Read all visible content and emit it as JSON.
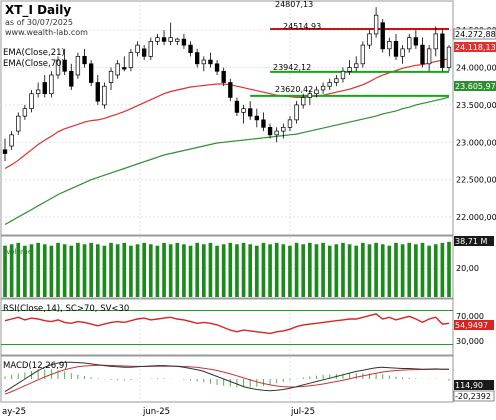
{
  "header": {
    "symbol_title": "XT_I Daily",
    "as_of": "as of 30/07/2025",
    "website": "www.wealth-lab.com"
  },
  "legend": {
    "ema21": "EMA(Close,21)",
    "ema70": "EMA(Close,70)",
    "rsi": "RSI(Close,14), SC>70, SV<30",
    "macd": "MACD(12,26,9)"
  },
  "price_axis": {
    "ticks": [
      "24.500,00",
      "24.000,00",
      "23.500,00",
      "23.000,00",
      "22.500,00",
      "22.000,00"
    ],
    "labels": {
      "last_close": "24.272,88",
      "ema21_value": "24.118,131",
      "ema70_value": "23.605,97"
    }
  },
  "annotations": {
    "peak": "24807,13",
    "resistance": "24514,93",
    "support_upper": "23942,12",
    "support_lower": "23620,42"
  },
  "colors": {
    "ema21": "#e03030",
    "ema70": "#2f8f2f",
    "resistance_line": "#cc1111",
    "support_line": "#11aa11",
    "volume": "#1a8a1a",
    "rsi_line": "#dd2222",
    "macd_line": "#333333",
    "signal_line": "#cc3333",
    "histogram": "#4caf50"
  },
  "volume_axis": {
    "ticks": [
      "20,00"
    ],
    "last_value": "38,71 M"
  },
  "rsi_axis": {
    "ticks": [
      "70,000",
      "30,000"
    ],
    "last_value": "54,9497"
  },
  "macd_axis": {
    "last_macd": "114,90",
    "last_hist": "-20,2392"
  },
  "x_axis": {
    "labels": [
      "ay-25",
      "jun-25",
      "jul-25"
    ]
  },
  "chart_data": [
    {
      "type": "candlestick",
      "title": "XT_I Daily",
      "ylim": [
        21800,
        24850
      ],
      "bars": [
        {
          "o": 22900,
          "h": 23050,
          "l": 22750,
          "c": 22850
        },
        {
          "o": 22950,
          "h": 23150,
          "l": 22900,
          "c": 23100
        },
        {
          "o": 23150,
          "h": 23400,
          "l": 23100,
          "c": 23350
        },
        {
          "o": 23350,
          "h": 23500,
          "l": 23300,
          "c": 23450
        },
        {
          "o": 23450,
          "h": 23700,
          "l": 23400,
          "c": 23650
        },
        {
          "o": 23650,
          "h": 23800,
          "l": 23600,
          "c": 23700
        },
        {
          "o": 23800,
          "h": 23900,
          "l": 23600,
          "c": 23650
        },
        {
          "o": 23650,
          "h": 23950,
          "l": 23600,
          "c": 23900
        },
        {
          "o": 23900,
          "h": 24150,
          "l": 23850,
          "c": 24100
        },
        {
          "o": 24100,
          "h": 24250,
          "l": 23900,
          "c": 23950
        },
        {
          "o": 23950,
          "h": 24050,
          "l": 23700,
          "c": 23750
        },
        {
          "o": 23900,
          "h": 24200,
          "l": 23850,
          "c": 24150
        },
        {
          "o": 24150,
          "h": 24250,
          "l": 24000,
          "c": 24050
        },
        {
          "o": 24050,
          "h": 24100,
          "l": 23750,
          "c": 23800
        },
        {
          "o": 23800,
          "h": 23900,
          "l": 23500,
          "c": 23550
        },
        {
          "o": 23500,
          "h": 23800,
          "l": 23450,
          "c": 23750
        },
        {
          "o": 23800,
          "h": 24000,
          "l": 23700,
          "c": 23950
        },
        {
          "o": 23900,
          "h": 24100,
          "l": 23850,
          "c": 24050
        },
        {
          "o": 24000,
          "h": 24150,
          "l": 23950,
          "c": 23980
        },
        {
          "o": 24000,
          "h": 24250,
          "l": 23950,
          "c": 24200
        },
        {
          "o": 24200,
          "h": 24350,
          "l": 24150,
          "c": 24300
        },
        {
          "o": 24250,
          "h": 24300,
          "l": 24100,
          "c": 24150
        },
        {
          "o": 24150,
          "h": 24400,
          "l": 24100,
          "c": 24350
        },
        {
          "o": 24350,
          "h": 24450,
          "l": 24300,
          "c": 24400
        },
        {
          "o": 24400,
          "h": 24500,
          "l": 24300,
          "c": 24350
        },
        {
          "o": 24350,
          "h": 24600,
          "l": 24300,
          "c": 24400
        },
        {
          "o": 24350,
          "h": 24400,
          "l": 24300,
          "c": 24380
        },
        {
          "o": 24380,
          "h": 24450,
          "l": 24250,
          "c": 24300
        },
        {
          "o": 24300,
          "h": 24350,
          "l": 24150,
          "c": 24200
        },
        {
          "o": 24200,
          "h": 24250,
          "l": 24000,
          "c": 24050
        },
        {
          "o": 24050,
          "h": 24150,
          "l": 23950,
          "c": 24100
        },
        {
          "o": 24100,
          "h": 24200,
          "l": 24000,
          "c": 24050
        },
        {
          "o": 24050,
          "h": 24100,
          "l": 23900,
          "c": 23950
        },
        {
          "o": 23950,
          "h": 24000,
          "l": 23750,
          "c": 23800
        },
        {
          "o": 23800,
          "h": 23850,
          "l": 23550,
          "c": 23600
        },
        {
          "o": 23550,
          "h": 23600,
          "l": 23350,
          "c": 23400
        },
        {
          "o": 23400,
          "h": 23500,
          "l": 23250,
          "c": 23450
        },
        {
          "o": 23450,
          "h": 23550,
          "l": 23300,
          "c": 23350
        },
        {
          "o": 23350,
          "h": 23450,
          "l": 23200,
          "c": 23300
        },
        {
          "o": 23300,
          "h": 23400,
          "l": 23150,
          "c": 23200
        },
        {
          "o": 23200,
          "h": 23250,
          "l": 23050,
          "c": 23100
        },
        {
          "o": 23100,
          "h": 23200,
          "l": 23000,
          "c": 23150
        },
        {
          "o": 23150,
          "h": 23250,
          "l": 23050,
          "c": 23200
        },
        {
          "o": 23200,
          "h": 23350,
          "l": 23150,
          "c": 23300
        },
        {
          "o": 23300,
          "h": 23550,
          "l": 23250,
          "c": 23500
        },
        {
          "o": 23500,
          "h": 23650,
          "l": 23450,
          "c": 23600
        },
        {
          "o": 23600,
          "h": 23700,
          "l": 23500,
          "c": 23650
        },
        {
          "o": 23650,
          "h": 23750,
          "l": 23600,
          "c": 23700
        },
        {
          "o": 23700,
          "h": 23800,
          "l": 23650,
          "c": 23750
        },
        {
          "o": 23750,
          "h": 23850,
          "l": 23700,
          "c": 23800
        },
        {
          "o": 23800,
          "h": 23900,
          "l": 23750,
          "c": 23850
        },
        {
          "o": 23850,
          "h": 24000,
          "l": 23800,
          "c": 23950
        },
        {
          "o": 23950,
          "h": 24100,
          "l": 23900,
          "c": 24000
        },
        {
          "o": 24000,
          "h": 24150,
          "l": 23950,
          "c": 24050
        },
        {
          "o": 24050,
          "h": 24350,
          "l": 24000,
          "c": 24300
        },
        {
          "o": 24300,
          "h": 24500,
          "l": 24250,
          "c": 24450
        },
        {
          "o": 24450,
          "h": 24807,
          "l": 24400,
          "c": 24700
        },
        {
          "o": 24600,
          "h": 24650,
          "l": 24200,
          "c": 24250
        },
        {
          "o": 24250,
          "h": 24400,
          "l": 24150,
          "c": 24350
        },
        {
          "o": 24350,
          "h": 24450,
          "l": 24100,
          "c": 24150
        },
        {
          "o": 24150,
          "h": 24300,
          "l": 24050,
          "c": 24250
        },
        {
          "o": 24250,
          "h": 24450,
          "l": 24200,
          "c": 24400
        },
        {
          "o": 24400,
          "h": 24500,
          "l": 24250,
          "c": 24300
        },
        {
          "o": 24300,
          "h": 24400,
          "l": 24000,
          "c": 24050
        },
        {
          "o": 24050,
          "h": 24300,
          "l": 23950,
          "c": 24250
        },
        {
          "o": 24250,
          "h": 24550,
          "l": 24150,
          "c": 24450
        },
        {
          "o": 24450,
          "h": 24520,
          "l": 23950,
          "c": 24000
        },
        {
          "o": 24000,
          "h": 24300,
          "l": 23950,
          "c": 24273
        }
      ],
      "ema21": [
        22650,
        22700,
        22760,
        22830,
        22900,
        22970,
        23030,
        23080,
        23140,
        23180,
        23210,
        23240,
        23270,
        23290,
        23300,
        23320,
        23350,
        23380,
        23410,
        23450,
        23490,
        23530,
        23570,
        23610,
        23650,
        23680,
        23700,
        23720,
        23740,
        23750,
        23760,
        23770,
        23780,
        23780,
        23770,
        23750,
        23730,
        23710,
        23690,
        23670,
        23650,
        23630,
        23620,
        23610,
        23600,
        23600,
        23610,
        23620,
        23630,
        23650,
        23670,
        23690,
        23710,
        23740,
        23770,
        23810,
        23860,
        23900,
        23930,
        23960,
        23990,
        24010,
        24030,
        24040,
        24060,
        24080,
        24100,
        24118
      ],
      "ema70": [
        21900,
        21950,
        22000,
        22050,
        22100,
        22150,
        22200,
        22250,
        22300,
        22340,
        22380,
        22420,
        22460,
        22500,
        22530,
        22560,
        22590,
        22620,
        22650,
        22680,
        22710,
        22740,
        22770,
        22800,
        22830,
        22850,
        22870,
        22890,
        22910,
        22930,
        22950,
        22970,
        22990,
        23000,
        23010,
        23020,
        23030,
        23040,
        23050,
        23060,
        23070,
        23080,
        23090,
        23100,
        23110,
        23130,
        23150,
        23170,
        23190,
        23210,
        23230,
        23250,
        23270,
        23290,
        23310,
        23330,
        23350,
        23380,
        23400,
        23420,
        23450,
        23470,
        23500,
        23520,
        23540,
        23560,
        23580,
        23606
      ],
      "resistance": 24514.93,
      "support_upper": 23942.12,
      "support_lower": 23620.42,
      "peak": 24807.13
    },
    {
      "type": "bar",
      "title": "Volume",
      "values": [
        36,
        37,
        38,
        36,
        37,
        38,
        37,
        36,
        38,
        37,
        36,
        38,
        37,
        38,
        37,
        36,
        38,
        37,
        38,
        36,
        37,
        38,
        37,
        36,
        38,
        37,
        38,
        37,
        36,
        38,
        37,
        38,
        36,
        37,
        38,
        37,
        38,
        37,
        36,
        38,
        37,
        38,
        37,
        36,
        38,
        37,
        38,
        37,
        38,
        36,
        37,
        38,
        37,
        36,
        38,
        37,
        38,
        37,
        36,
        38,
        37,
        38,
        37,
        38,
        36,
        37,
        38,
        38.71
      ],
      "ylim": [
        0,
        40
      ]
    },
    {
      "type": "line",
      "title": "RSI(Close,14), SC>70, SV<30",
      "values": [
        58,
        60,
        62,
        59,
        61,
        60,
        58,
        57,
        59,
        56,
        55,
        57,
        56,
        54,
        52,
        54,
        56,
        57,
        56,
        58,
        60,
        61,
        59,
        60,
        61,
        62,
        60,
        59,
        57,
        55,
        56,
        55,
        53,
        50,
        47,
        45,
        47,
        46,
        45,
        44,
        43,
        45,
        46,
        48,
        51,
        53,
        54,
        55,
        56,
        57,
        58,
        59,
        60,
        60,
        62,
        64,
        66,
        60,
        62,
        59,
        61,
        63,
        60,
        56,
        60,
        62,
        54,
        54.95
      ],
      "ylim": [
        20,
        80
      ],
      "levels": [
        70,
        30
      ]
    },
    {
      "type": "line",
      "title": "MACD(12,26,9)",
      "macd": [
        -150,
        -100,
        -50,
        0,
        50,
        100,
        140,
        170,
        190,
        200,
        200,
        195,
        190,
        180,
        170,
        160,
        150,
        145,
        140,
        140,
        145,
        150,
        155,
        160,
        160,
        155,
        150,
        140,
        125,
        110,
        90,
        60,
        30,
        0,
        -30,
        -60,
        -90,
        -110,
        -125,
        -135,
        -140,
        -135,
        -125,
        -110,
        -90,
        -70,
        -50,
        -30,
        -10,
        10,
        30,
        50,
        70,
        90,
        105,
        120,
        135,
        140,
        135,
        130,
        125,
        125,
        120,
        115,
        118,
        120,
        117,
        114.9
      ],
      "signal": [
        -180,
        -150,
        -115,
        -80,
        -45,
        -10,
        25,
        55,
        85,
        110,
        130,
        145,
        155,
        160,
        163,
        163,
        161,
        158,
        155,
        152,
        150,
        149,
        150,
        151,
        152,
        152,
        151,
        149,
        144,
        138,
        129,
        116,
        101,
        82,
        61,
        38,
        13,
        -11,
        -33,
        -53,
        -70,
        -83,
        -91,
        -95,
        -94,
        -89,
        -81,
        -71,
        -59,
        -45,
        -30,
        -14,
        3,
        20,
        37,
        53,
        69,
        83,
        94,
        101,
        106,
        110,
        112,
        113,
        114,
        116,
        116,
        115
      ],
      "hist": [
        30,
        50,
        65,
        80,
        95,
        110,
        115,
        115,
        105,
        90,
        70,
        50,
        35,
        20,
        7,
        -3,
        -11,
        -13,
        -15,
        -12,
        -5,
        1,
        5,
        9,
        8,
        3,
        -1,
        -9,
        -19,
        -28,
        -39,
        -56,
        -71,
        -82,
        -91,
        -98,
        -103,
        -99,
        -92,
        -82,
        -70,
        -52,
        -34,
        -15,
        4,
        19,
        31,
        41,
        49,
        55,
        60,
        64,
        67,
        70,
        68,
        67,
        66,
        57,
        41,
        29,
        19,
        15,
        8,
        2,
        4,
        4,
        1,
        -20.24
      ],
      "ylim": [
        -250,
        250
      ]
    }
  ]
}
